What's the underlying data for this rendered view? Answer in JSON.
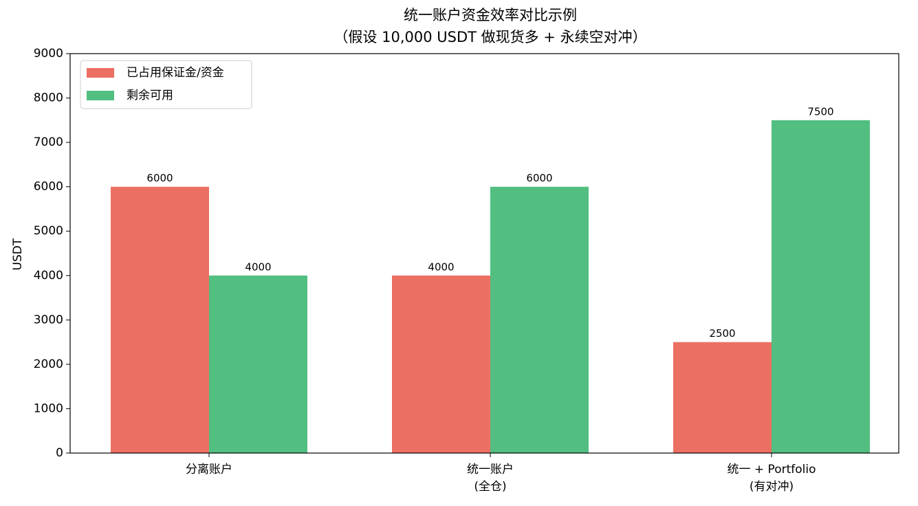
{
  "chart_data": {
    "type": "bar",
    "title": "统一账户资金效率对比示例",
    "subtitle": "（假设 10,000 USDT 做现货多 + 永续空对冲）",
    "y_label": "USDT",
    "categories": [
      [
        "分离账户"
      ],
      [
        "统一账户",
        "(全仓)"
      ],
      [
        "统一 + Portfolio",
        "(有对冲)"
      ]
    ],
    "series": [
      {
        "name": "已占用保证金/资金",
        "color": "#eb7063",
        "values": [
          6000,
          4000,
          2500
        ]
      },
      {
        "name": "剩余可用",
        "color": "#52be80",
        "values": [
          4000,
          6000,
          7500
        ]
      }
    ],
    "ylim": [
      0,
      9000
    ],
    "yticks": [
      0,
      1000,
      2000,
      3000,
      4000,
      5000,
      6000,
      7000,
      8000,
      9000
    ],
    "legend": "upper left"
  }
}
